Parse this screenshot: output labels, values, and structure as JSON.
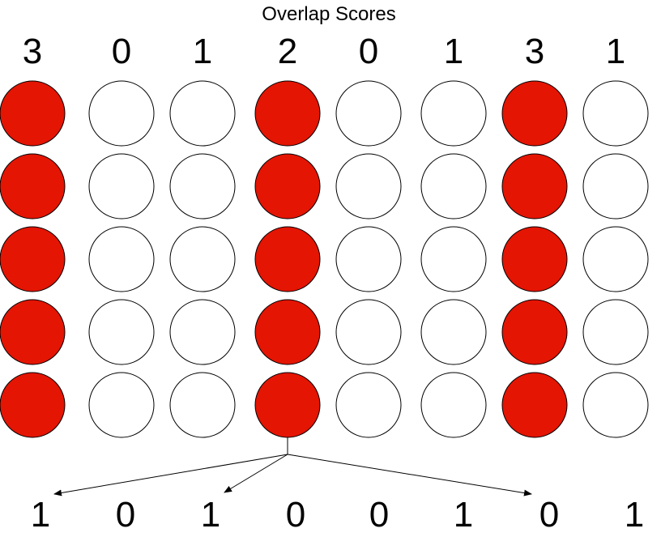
{
  "title": "Overlap Scores",
  "overlap_scores": [
    "3",
    "0",
    "1",
    "2",
    "0",
    "1",
    "3",
    "1"
  ],
  "grid": {
    "rows": 5,
    "active_columns": [
      0,
      3,
      6
    ],
    "active_color": "#e41502",
    "inactive_color": "#ffffff",
    "stroke_color": "#000000"
  },
  "bottom_values": [
    "1",
    "0",
    "1",
    "0",
    "0",
    "1",
    "0",
    "1"
  ],
  "connections": {
    "source_column": 3,
    "target_indices": [
      0,
      2,
      6
    ]
  }
}
